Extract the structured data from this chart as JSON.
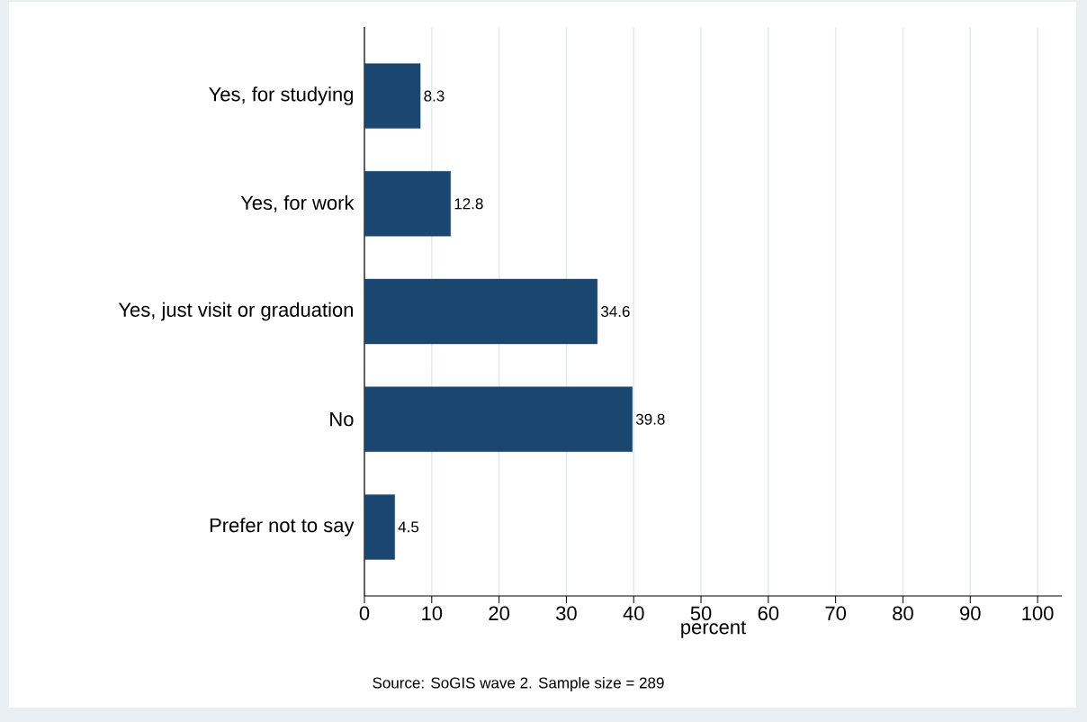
{
  "chart_data": {
    "type": "bar",
    "orientation": "horizontal",
    "xlabel": "percent",
    "categories": [
      "Yes, for studying",
      "Yes, for work",
      "Yes, just visit or graduation",
      "No",
      "Prefer not to say"
    ],
    "values": [
      8.3,
      12.8,
      34.6,
      39.8,
      4.5
    ],
    "color": "#1a476f",
    "xlim": [
      0,
      103.6
    ],
    "xticks": [
      0,
      10,
      20,
      30,
      40,
      50,
      60,
      70,
      80,
      90,
      100
    ],
    "grid": "x",
    "data_labels": true,
    "annotations": [
      "Source: SoGIS wave 2. Sample size = 289"
    ]
  }
}
